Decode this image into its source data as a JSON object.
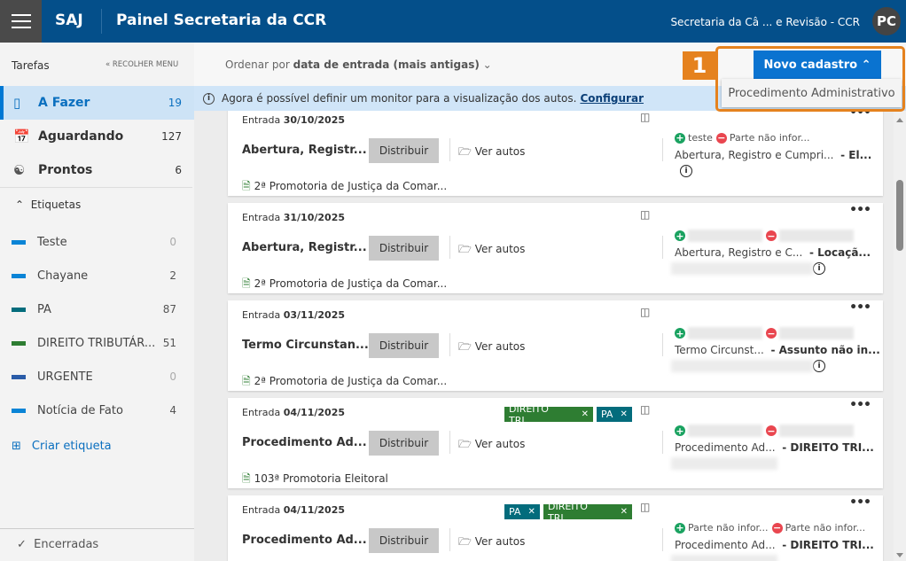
{
  "header": {
    "app": "SAJ",
    "title": "Painel Secretaria da CCR",
    "user_org": "Secretaria da Câ ... e Revisão - CCR",
    "avatar": "PC"
  },
  "sidebar": {
    "section_title": "Tarefas",
    "collapse_label": "« RECOLHER MENU",
    "items": [
      {
        "label": "A Fazer",
        "count": "19",
        "icon": "bookmark-icon"
      },
      {
        "label": "Aguardando",
        "count": "127",
        "icon": "calendar-clock-icon"
      },
      {
        "label": "Prontos",
        "count": "6",
        "icon": "people-icon"
      }
    ],
    "tags_title": "Etiquetas",
    "tags": [
      {
        "label": "Teste",
        "count": "0",
        "color": "#0a84d6"
      },
      {
        "label": "Chayane",
        "count": "2",
        "color": "#0a84d6"
      },
      {
        "label": "PA",
        "count": "87",
        "color": "#036c7c"
      },
      {
        "label": "DIREITO TRIBUTÁR...",
        "count": "51",
        "color": "#2e7d32"
      },
      {
        "label": "URGENTE",
        "count": "0",
        "color": "#2a5ca8"
      },
      {
        "label": "Notícia de Fato",
        "count": "4",
        "color": "#0a84d6"
      }
    ],
    "create_tag": "Criar etiqueta",
    "closed": "Encerradas"
  },
  "toolbar": {
    "sort_prefix": "Ordenar por",
    "sort_value": "data de entrada (mais antigas)",
    "new_button": "Novo cadastro",
    "dropdown_item": "Procedimento Administrativo",
    "step_badge": "1"
  },
  "info": {
    "text": "Agora é possível definir um monitor para a visualização dos autos.",
    "link": "Configurar"
  },
  "cards_common": {
    "entrada_label": "Entrada",
    "distribute": "Distribuir",
    "view": "Ver autos"
  },
  "cards": [
    {
      "date": "30/10/2025",
      "title": "Abertura, Registr...",
      "org": "2ª Promotoria de Justiça da Comar...",
      "party_plus": "teste",
      "party_minus": "Parte não infor...",
      "subject": "Abertura, Registro e Cumpri...",
      "subject2": "- El...",
      "tags": []
    },
    {
      "date": "31/10/2025",
      "title": "Abertura, Registr...",
      "org": "2ª Promotoria de Justiça da Comar...",
      "party_plus": "",
      "party_minus": "",
      "subject": "Abertura, Registro e C...",
      "subject2": "- Locaçã...",
      "tags": []
    },
    {
      "date": "03/11/2025",
      "title": "Termo Circunstan...",
      "org": "2ª Promotoria de Justiça da Comar...",
      "party_plus": "",
      "party_minus": "",
      "subject": "Termo Circunst...",
      "subject2": "- Assunto não in...",
      "tags": []
    },
    {
      "date": "04/11/2025",
      "title": "Procedimento Ad...",
      "org": "103ª Promotoria Eleitoral",
      "party_plus": "",
      "party_minus": "",
      "subject": "Procedimento Ad...",
      "subject2": "- DIREITO TRI...",
      "tags": [
        {
          "label": "DIREITO TRI...",
          "color": "#2e7d32"
        },
        {
          "label": "PA",
          "color": "#036c7c"
        }
      ]
    },
    {
      "date": "04/11/2025",
      "title": "Procedimento Ad...",
      "org": "",
      "party_plus": "Parte não infor...",
      "party_minus": "Parte não infor...",
      "subject": "Procedimento Ad...",
      "subject2": "- DIREITO TRI...",
      "tags": [
        {
          "label": "PA",
          "color": "#036c7c"
        },
        {
          "label": "DIREITO TRI...",
          "color": "#2e7d32"
        }
      ]
    }
  ]
}
